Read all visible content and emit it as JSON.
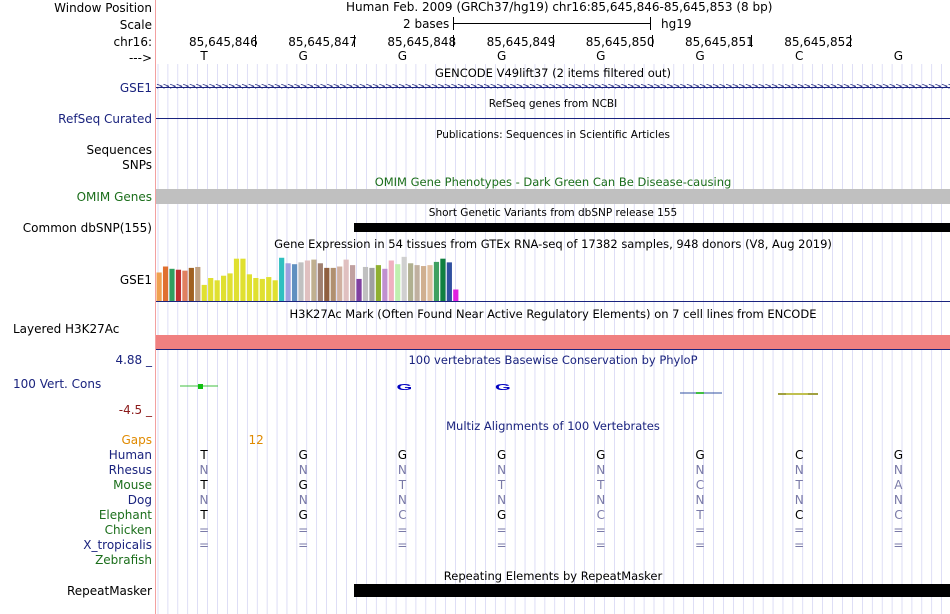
{
  "window": {
    "label": "Window Position",
    "text": "Human Feb. 2009 (GRCh37/hg19)   chr16:85,645,846-85,645,853 (8 bp)"
  },
  "scale": {
    "label": "Scale",
    "bases": "2 bases",
    "assembly": "hg19"
  },
  "chrom": {
    "label": "chr16:",
    "positions": [
      "85,645,846",
      "85,645,847",
      "85,645,848",
      "85,645,849",
      "85,645,850",
      "85,645,851",
      "85,645,852"
    ]
  },
  "strand": {
    "label": "--->",
    "bases": [
      "T",
      "G",
      "G",
      "G",
      "G",
      "G",
      "C",
      "G"
    ]
  },
  "tracks": {
    "gencode": {
      "title": "GENCODE V49lift37 (2 items filtered out)",
      "label": "GSE1"
    },
    "refseq": {
      "title": "RefSeq genes from NCBI",
      "label": "RefSeq Curated"
    },
    "publications": {
      "title": "Publications: Sequences in Scientific Articles",
      "label": "Sequences"
    },
    "snps": {
      "label": "SNPs"
    },
    "omim": {
      "title": "OMIM Gene Phenotypes - Dark Green Can Be Disease-causing",
      "label": "OMIM Genes"
    },
    "dbsnp": {
      "title": "Short Genetic Variants from dbSNP release 155",
      "label": "Common dbSNP(155)"
    },
    "gtex": {
      "title": "Gene Expression in 54 tissues from GTEx RNA-seq of 17382 samples, 948 donors (V8, Aug 2019)",
      "label": "GSE1"
    },
    "h3k27ac": {
      "title": "H3K27Ac Mark (Often Found Near Active Regulatory Elements) on 7 cell lines from ENCODE",
      "label": "Layered H3K27Ac"
    },
    "conservation": {
      "title": "100 vertebrates Basewise Conservation by PhyloP",
      "label": "100 Vert. Cons",
      "max": "4.88 _",
      "min": "-4.5 _"
    },
    "multiz": {
      "title": "Multiz Alignments of 100 Vertebrates"
    },
    "repeatmasker": {
      "title": "Repeating Elements by RepeatMasker",
      "label": "RepeatMasker"
    }
  },
  "multiz_rows": [
    {
      "species": "Gaps",
      "color": "#e08a00",
      "bases": [
        "",
        "12",
        "",
        "",
        "",
        "",
        "",
        ""
      ]
    },
    {
      "species": "Human",
      "color": "#1a237e",
      "bases": [
        "T",
        "G",
        "G",
        "G",
        "G",
        "G",
        "C",
        "G"
      ]
    },
    {
      "species": "Rhesus",
      "color": "#1a237e",
      "bases": [
        "N",
        "N",
        "N",
        "N",
        "N",
        "N",
        "N",
        "N"
      ]
    },
    {
      "species": "Mouse",
      "color": "#1b6e1b",
      "bases": [
        "T",
        "G",
        "T",
        "T",
        "T",
        "C",
        "T",
        "A"
      ]
    },
    {
      "species": "Dog",
      "color": "#1a237e",
      "bases": [
        "N",
        "N",
        "N",
        "N",
        "N",
        "N",
        "N",
        "N"
      ]
    },
    {
      "species": "Elephant",
      "color": "#1b6e1b",
      "bases": [
        "T",
        "G",
        "C",
        "G",
        "C",
        "T",
        "C",
        "C"
      ]
    },
    {
      "species": "Chicken",
      "color": "#1b6e1b",
      "bases": [
        "=",
        "=",
        "=",
        "=",
        "=",
        "=",
        "=",
        "="
      ]
    },
    {
      "species": "X_tropicalis",
      "color": "#1a237e",
      "bases": [
        "=",
        "=",
        "=",
        "=",
        "=",
        "=",
        "=",
        "="
      ]
    },
    {
      "species": "Zebrafish",
      "color": "#1b6e1b",
      "bases": [
        "",
        "",
        "",
        "",
        "",
        "",
        "",
        ""
      ]
    }
  ],
  "gtex_bars": [
    {
      "v": 0.62,
      "c": "#f0a050"
    },
    {
      "v": 0.75,
      "c": "#e07030"
    },
    {
      "v": 0.7,
      "c": "#30a060"
    },
    {
      "v": 0.68,
      "c": "#c03030"
    },
    {
      "v": 0.66,
      "c": "#e08060"
    },
    {
      "v": 0.72,
      "c": "#a06020"
    },
    {
      "v": 0.74,
      "c": "#c0a080"
    },
    {
      "v": 0.35,
      "c": "#e0e030"
    },
    {
      "v": 0.5,
      "c": "#e0e030"
    },
    {
      "v": 0.45,
      "c": "#e0e030"
    },
    {
      "v": 0.55,
      "c": "#e0e030"
    },
    {
      "v": 0.6,
      "c": "#e0e030"
    },
    {
      "v": 0.92,
      "c": "#e0e030"
    },
    {
      "v": 0.92,
      "c": "#e0e030"
    },
    {
      "v": 0.58,
      "c": "#e0e030"
    },
    {
      "v": 0.5,
      "c": "#e0e030"
    },
    {
      "v": 0.48,
      "c": "#e0e030"
    },
    {
      "v": 0.52,
      "c": "#e0e030"
    },
    {
      "v": 0.45,
      "c": "#e0e030"
    },
    {
      "v": 0.94,
      "c": "#30c0c0"
    },
    {
      "v": 0.82,
      "c": "#a0a0e0"
    },
    {
      "v": 0.8,
      "c": "#6090c0"
    },
    {
      "v": 0.84,
      "c": "#c0c0c0"
    },
    {
      "v": 0.88,
      "c": "#e0c0c0"
    },
    {
      "v": 0.9,
      "c": "#c0b090"
    },
    {
      "v": 0.82,
      "c": "#a08070"
    },
    {
      "v": 0.72,
      "c": "#906040"
    },
    {
      "v": 0.72,
      "c": "#b09070"
    },
    {
      "v": 0.75,
      "c": "#d0b0a0"
    },
    {
      "v": 0.9,
      "c": "#e0c0c0"
    },
    {
      "v": 0.78,
      "c": "#c0a0a0"
    },
    {
      "v": 0.48,
      "c": "#8040a0"
    },
    {
      "v": 0.74,
      "c": "#c0c0c0"
    },
    {
      "v": 0.72,
      "c": "#a0a0a0"
    },
    {
      "v": 0.78,
      "c": "#90b030"
    },
    {
      "v": 0.7,
      "c": "#c090d0"
    },
    {
      "v": 0.88,
      "c": "#f0b0c0"
    },
    {
      "v": 0.8,
      "c": "#c0f0b0"
    },
    {
      "v": 0.96,
      "c": "#d0d0d0"
    },
    {
      "v": 0.82,
      "c": "#b0b090"
    },
    {
      "v": 0.78,
      "c": "#c0b0a0"
    },
    {
      "v": 0.76,
      "c": "#d0b090"
    },
    {
      "v": 0.78,
      "c": "#e0c0a0"
    },
    {
      "v": 0.85,
      "c": "#40a060"
    },
    {
      "v": 0.92,
      "c": "#108040"
    },
    {
      "v": 0.84,
      "c": "#3050a0"
    },
    {
      "v": 0.25,
      "c": "#e020e0"
    }
  ],
  "colors": {
    "gene": "#1a237e",
    "omim": "#c0c0c0",
    "h3k27ac": "#f08080",
    "black": "#000000"
  }
}
